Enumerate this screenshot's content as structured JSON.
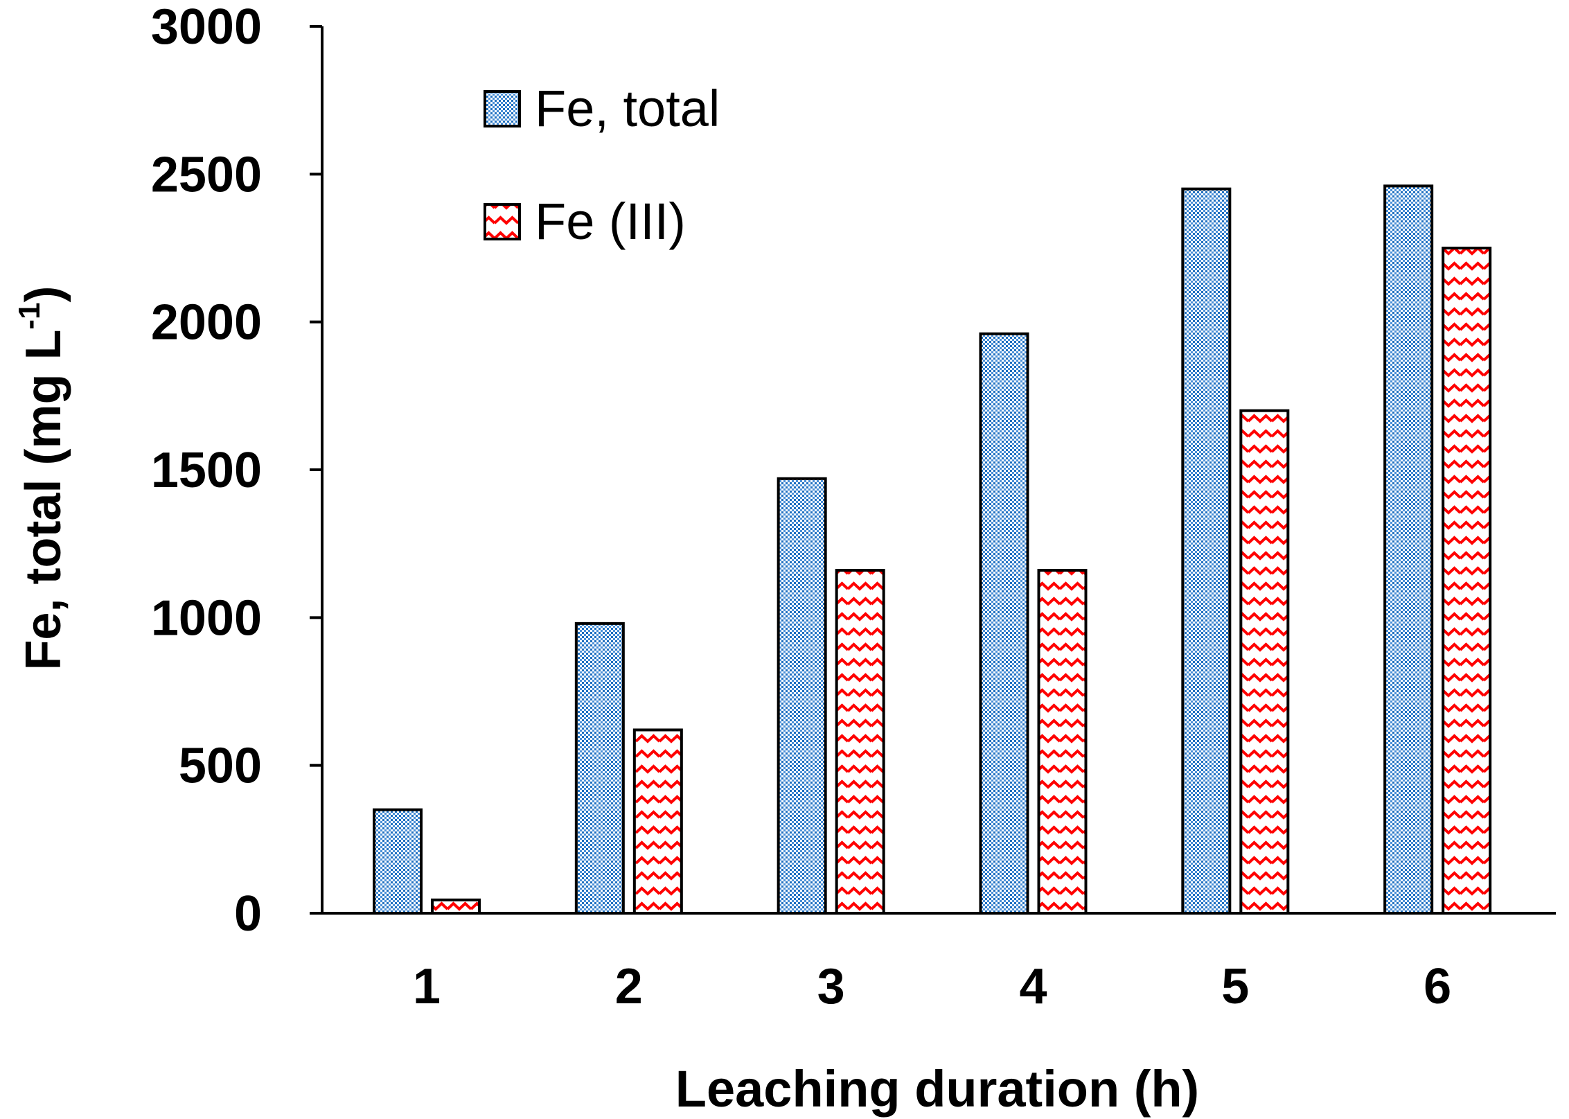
{
  "chart_data": {
    "type": "bar",
    "title": "",
    "xlabel": "Leaching duration (h)",
    "ylabel": "Fe, total (mg L",
    "ylabel_superscript": "-1",
    "ylabel_close": ")",
    "categories": [
      "1",
      "2",
      "3",
      "4",
      "5",
      "6"
    ],
    "ylim": [
      0,
      3000
    ],
    "yticks": [
      0,
      500,
      1000,
      1500,
      2000,
      2500,
      3000
    ],
    "series": [
      {
        "name": "Fe, total",
        "values": [
          350,
          980,
          1470,
          1960,
          2450,
          2460
        ],
        "color": "#1f77b4",
        "pattern": "dots"
      },
      {
        "name": "Fe (III)",
        "values": [
          45,
          620,
          1160,
          1160,
          1700,
          2250
        ],
        "color": "#ff0000",
        "pattern": "waves"
      }
    ],
    "legend_position": "top-left",
    "grid": false
  }
}
